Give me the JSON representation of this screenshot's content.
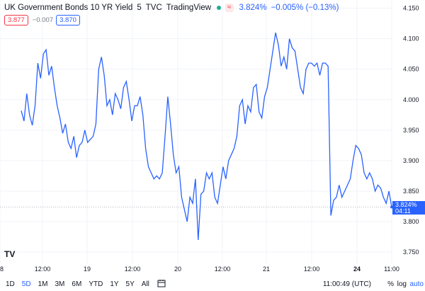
{
  "header": {
    "symbol": "UK Government Bonds 10 YR Yield",
    "interval": "5",
    "exchange": "TVC",
    "source": "TradingView",
    "last_price": "3.824%",
    "change": "−0.005% (−0.13%)",
    "sell_price": "3.877",
    "spread": "−0.007",
    "buy_price": "3.870"
  },
  "price_label": {
    "price": "3.824%",
    "countdown": "04:11"
  },
  "logo_text": "TV",
  "toolbar": {
    "ranges": [
      "1D",
      "5D",
      "1M",
      "3M",
      "6M",
      "YTD",
      "1Y",
      "5Y",
      "All"
    ],
    "active_range": "5D",
    "clock": "11:00:49 (UTC)",
    "percent_label": "%",
    "log_label": "log",
    "auto_label": "auto"
  },
  "colors": {
    "line": "#2962ff",
    "grid": "#f0f3fa",
    "axis_text": "#131722",
    "price_line": "#b2b5be"
  },
  "chart_data": {
    "type": "line",
    "x_ticks": [
      "8",
      "12:00",
      "19",
      "12:00",
      "20",
      "12:00",
      "21",
      "12:00",
      "24",
      "11:00"
    ],
    "y_ticks": [
      3.75,
      3.8,
      3.85,
      3.9,
      3.95,
      4.0,
      4.05,
      4.1,
      4.15
    ],
    "ylim": [
      3.735,
      4.16
    ],
    "series": [
      {
        "x": [
          0,
          1,
          2,
          3,
          4,
          5,
          6,
          7,
          8,
          9,
          10,
          11,
          12,
          13,
          14,
          15,
          16,
          17,
          18,
          19,
          20,
          21,
          22,
          23,
          24,
          25,
          26,
          27,
          28,
          29,
          30,
          31,
          32,
          33,
          34,
          35,
          36,
          37,
          38,
          39,
          40,
          41,
          42,
          43,
          44,
          45,
          46,
          47,
          48,
          49,
          50,
          51,
          52,
          53,
          54,
          55,
          56,
          57,
          58,
          59,
          60,
          61,
          62,
          63,
          64,
          65,
          66,
          67,
          68,
          69,
          70,
          71,
          72,
          73,
          74,
          75,
          76,
          77,
          78,
          79,
          80,
          81,
          82,
          83,
          84,
          85,
          86,
          87,
          88,
          89,
          90,
          91,
          92,
          93,
          94,
          95,
          96,
          97,
          98,
          99,
          100,
          101,
          102,
          103,
          104,
          105,
          106,
          107,
          108,
          109,
          110,
          111,
          112,
          113,
          114,
          115,
          116,
          117,
          118,
          119,
          120,
          121,
          122,
          123,
          124,
          125,
          126,
          127,
          128,
          129,
          130,
          131,
          132,
          133,
          134
        ],
        "y": [
          3.982,
          3.965,
          4.01,
          3.975,
          3.958,
          3.99,
          4.06,
          4.035,
          4.075,
          4.082,
          4.04,
          4.055,
          4.02,
          3.99,
          3.97,
          3.945,
          3.96,
          3.93,
          3.92,
          3.94,
          3.905,
          3.925,
          3.93,
          3.95,
          3.93,
          3.935,
          3.94,
          3.96,
          4.05,
          4.07,
          4.04,
          3.99,
          4.0,
          3.975,
          4.01,
          4.0,
          3.985,
          4.02,
          4.03,
          4.0,
          3.965,
          3.99,
          3.99,
          4.005,
          3.975,
          3.92,
          3.89,
          3.88,
          3.87,
          3.875,
          3.87,
          3.88,
          3.94,
          4.005,
          3.96,
          3.91,
          3.88,
          3.89,
          3.84,
          3.82,
          3.8,
          3.84,
          3.83,
          3.87,
          3.77,
          3.845,
          3.85,
          3.88,
          3.87,
          3.88,
          3.84,
          3.83,
          3.86,
          3.89,
          3.87,
          3.9,
          3.91,
          3.92,
          3.94,
          3.99,
          4.0,
          3.96,
          3.99,
          3.98,
          4.02,
          4.025,
          3.98,
          3.97,
          4.005,
          4.02,
          4.05,
          4.08,
          4.11,
          4.09,
          4.055,
          4.07,
          4.05,
          4.1,
          4.085,
          4.08,
          4.05,
          4.02,
          4.01,
          4.05,
          4.06,
          4.06,
          4.055,
          4.06,
          4.04,
          4.06,
          4.06,
          4.055,
          3.81,
          3.835,
          3.84,
          3.86,
          3.84,
          3.85,
          3.86,
          3.87,
          3.9,
          3.925,
          3.92,
          3.91,
          3.88,
          3.87,
          3.88,
          3.87,
          3.85,
          3.86,
          3.855,
          3.84,
          3.83,
          3.85,
          3.824
        ]
      }
    ]
  }
}
